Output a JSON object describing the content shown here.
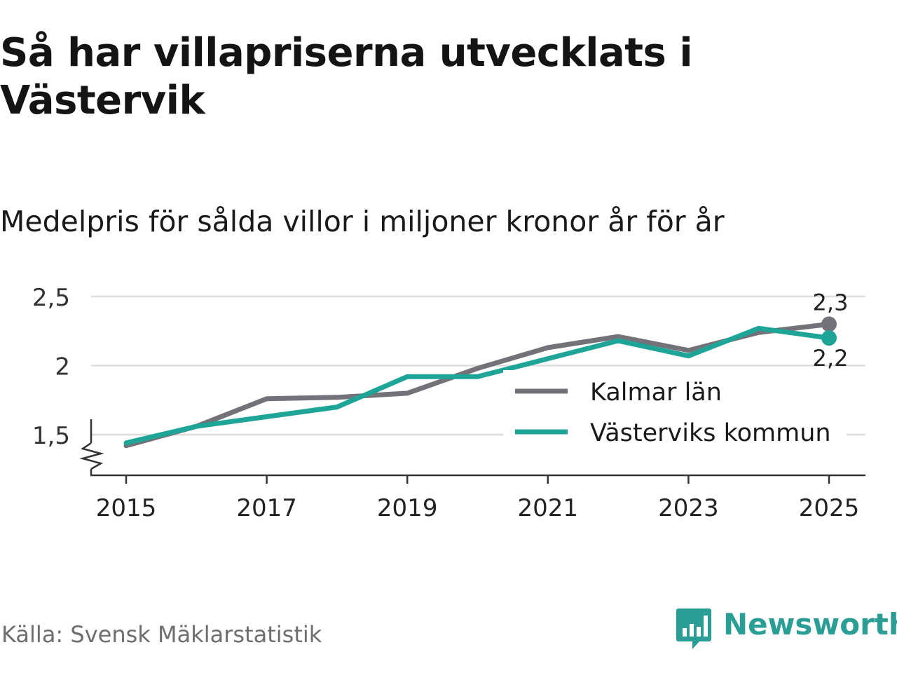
{
  "title": "Så har villapriserna utvecklats i Västervik",
  "subtitle": "Medelpris för sålda villor i miljoner kronor år för år",
  "source": "Källa: Svensk Mäklarstatistik",
  "brand": {
    "name": "Newsworthy",
    "icon": "newsworthy-logo-icon"
  },
  "colors": {
    "kalmar": "#737278",
    "vastervik": "#1fa597",
    "grid": "#dddddd",
    "axis": "#333333"
  },
  "chart_data": {
    "type": "line",
    "title": "Medelpris för sålda villor i miljoner kronor år för år",
    "xlabel": "",
    "ylabel": "",
    "x": [
      2015,
      2016,
      2017,
      2018,
      2019,
      2020,
      2021,
      2022,
      2023,
      2024,
      2025
    ],
    "xticks": [
      "2015",
      "2017",
      "2019",
      "2021",
      "2023",
      "2025"
    ],
    "ylim": [
      1.22,
      2.6
    ],
    "yticks": [
      1.5,
      2,
      2.5
    ],
    "ytick_labels": [
      "1,5",
      "2",
      "2,5"
    ],
    "axis_break": true,
    "series": [
      {
        "name": "Kalmar län",
        "color": "#737278",
        "values": [
          1.42,
          1.56,
          1.76,
          1.77,
          1.8,
          1.98,
          2.13,
          2.21,
          2.11,
          2.24,
          2.3
        ],
        "end_label": "2,3"
      },
      {
        "name": "Västerviks kommun",
        "color": "#1fa597",
        "values": [
          1.44,
          1.56,
          1.63,
          1.7,
          1.92,
          1.92,
          2.05,
          2.18,
          2.07,
          2.27,
          2.2
        ],
        "end_label": "2,2"
      }
    ],
    "legend": [
      "Kalmar län",
      "Västerviks kommun"
    ],
    "legend_position": "center-right"
  }
}
